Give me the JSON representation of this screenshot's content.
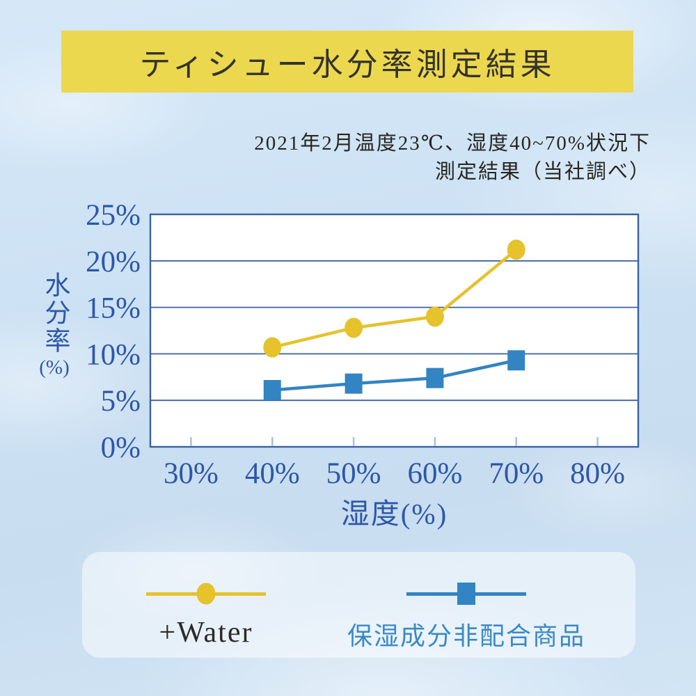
{
  "page": {
    "background_color": "#cde2f4"
  },
  "banner": {
    "title": "ティシュー水分率測定結果",
    "background_color": "#ecd84f",
    "text_color": "#34332c"
  },
  "subtitle": {
    "line1": "2021年2月温度23℃、湿度40~70%状況下",
    "line2": "測定結果（当社調べ）"
  },
  "chart_data": {
    "type": "line",
    "categories": [
      "30%",
      "40%",
      "50%",
      "60%",
      "70%",
      "80%"
    ],
    "y_ticks": [
      "0%",
      "5%",
      "10%",
      "15%",
      "20%",
      "25%"
    ],
    "y_tick_values": [
      0,
      5,
      10,
      15,
      20,
      25
    ],
    "ylim": [
      0,
      25
    ],
    "xlabel": "湿度(%)",
    "ylabel": "水分率(%)",
    "ylabel_stacked": "水分率",
    "ylabel_unit": "(%)",
    "grid": "horizontal",
    "legend_position": "bottom",
    "plot_background": "#ffffff",
    "axis_text_color": "#2d57a8",
    "gridline_color": "#3a60a4",
    "x_tick_mark_color": "#a7c2de",
    "series": [
      {
        "name": "+Water",
        "color": "#e6c22b",
        "marker": "circle",
        "label_color": "#2b2a26",
        "x": [
          "40%",
          "50%",
          "60%",
          "70%"
        ],
        "values": [
          10.7,
          12.8,
          14.0,
          21.2
        ]
      },
      {
        "name": "保湿成分非配合商品",
        "color": "#3384c2",
        "marker": "square",
        "label_color": "#3a89c7",
        "x": [
          "40%",
          "50%",
          "60%",
          "70%"
        ],
        "values": [
          6.1,
          6.8,
          7.4,
          9.3
        ]
      }
    ]
  }
}
